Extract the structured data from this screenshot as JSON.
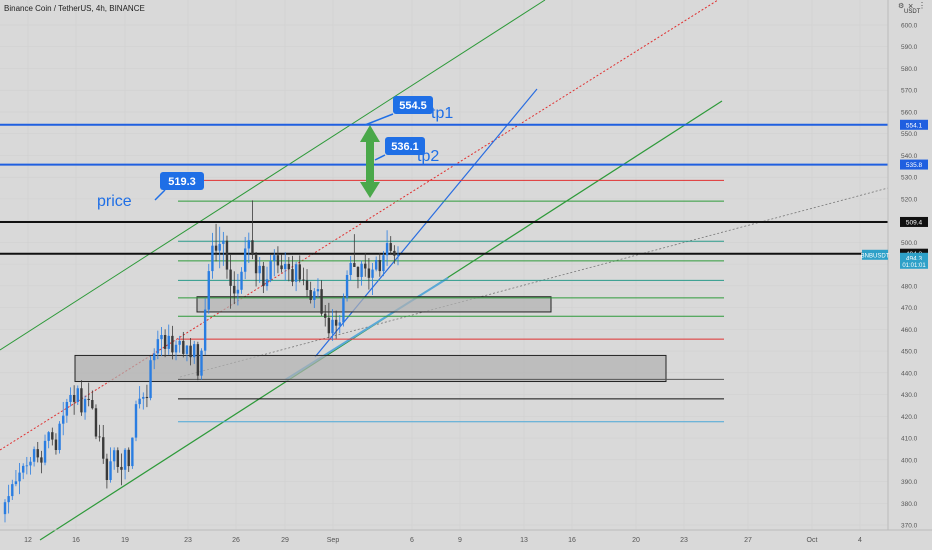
{
  "header": {
    "symbol_title": "Binance Coin / TetherUS, 4h, BINANCE",
    "currency": "USDT"
  },
  "icons": {
    "gear": "gear-icon",
    "close": "close-icon",
    "more": "more-icon"
  },
  "colors": {
    "background": "#d9d9d9",
    "up": "#2a7de1",
    "down": "#3a3a3a",
    "tp_blue": "#1f5fe0",
    "green_line": "#2e9a3a",
    "red_line": "#e03030",
    "callout": "#1f6fe6",
    "arrow": "#4aa84a"
  },
  "chart_data": {
    "type": "candlestick",
    "title": "Binance Coin / TetherUS, 4h, BINANCE",
    "y_axis_ticks": [
      370,
      380,
      390,
      400,
      410,
      420,
      430,
      440,
      450,
      460,
      470,
      480,
      490,
      500,
      510,
      520,
      530,
      540,
      550,
      560,
      570,
      580,
      590,
      600
    ],
    "y_tick_labels": [
      "370.0",
      "380.0",
      "390.0",
      "400.0",
      "410.0",
      "420.0",
      "430.0",
      "440.0",
      "450.0",
      "460.0",
      "470.0",
      "480.0",
      "490.0",
      "500.0",
      "510.0",
      "520.0",
      "530.0",
      "540.0",
      "550.0",
      "560.0",
      "570.0",
      "580.0",
      "590.0",
      "600.0"
    ],
    "x_axis_labels": [
      "12",
      "16",
      "19",
      "23",
      "26",
      "29",
      "Sep",
      "6",
      "9",
      "13",
      "16",
      "20",
      "23",
      "27",
      "Oct",
      "4"
    ],
    "ylim": [
      365,
      605
    ],
    "price_labels": [
      {
        "value": 554.1,
        "text": "554.1"
      },
      {
        "value": 535.8,
        "text": "535.8"
      },
      {
        "value": 509.4,
        "text": "509.4"
      },
      {
        "value": 494.8,
        "text": "494.8"
      },
      {
        "value": 494.3,
        "text": "494.3"
      }
    ],
    "current_price_tag": {
      "symbol": "BNBUSDT",
      "price": "494.3",
      "countdown": "01:01:01"
    },
    "horizontal_lines": [
      {
        "value": 554.1,
        "color": "blue",
        "extent": "full"
      },
      {
        "value": 535.8,
        "color": "blue",
        "extent": "full"
      },
      {
        "value": 509.4,
        "color": "black",
        "extent": "full"
      },
      {
        "value": 494.8,
        "color": "black",
        "extent": "full"
      },
      {
        "value": 528.5,
        "color": "red",
        "extent": "partial"
      },
      {
        "value": 519.0,
        "color": "green",
        "extent": "partial"
      },
      {
        "value": 500.5,
        "color": "teal",
        "extent": "partial"
      },
      {
        "value": 491.5,
        "color": "green",
        "extent": "partial"
      },
      {
        "value": 482.5,
        "color": "teal",
        "extent": "partial"
      },
      {
        "value": 474.5,
        "color": "green",
        "extent": "partial"
      },
      {
        "value": 466.0,
        "color": "green",
        "extent": "partial"
      },
      {
        "value": 455.5,
        "color": "red",
        "extent": "partial"
      },
      {
        "value": 437.0,
        "color": "gray",
        "extent": "partial"
      },
      {
        "value": 428.0,
        "color": "black",
        "extent": "partial"
      },
      {
        "value": 417.5,
        "color": "lightblue",
        "extent": "partial"
      }
    ],
    "zones": [
      {
        "from": 468,
        "to": 475
      },
      {
        "from": 436,
        "to": 448
      }
    ],
    "callouts": [
      {
        "text": "554.5",
        "label": "tp1"
      },
      {
        "text": "536.1",
        "label": "tp2"
      },
      {
        "text": "519.3",
        "label": "price"
      }
    ],
    "candles": [
      [
        375.0,
        381.9,
        371.2,
        380.5
      ],
      [
        380.5,
        388.5,
        375.3,
        383.3
      ],
      [
        383.3,
        390.8,
        381.5,
        388.8
      ],
      [
        388.8,
        395.3,
        387.8,
        390.1
      ],
      [
        390.1,
        398.5,
        384.2,
        394.1
      ],
      [
        394.1,
        398.4,
        391.1,
        397.2
      ],
      [
        397.2,
        401.3,
        393.3,
        397.4
      ],
      [
        397.4,
        401.3,
        393.2,
        399.1
      ],
      [
        399.1,
        406.1,
        396.9,
        404.9
      ],
      [
        404.9,
        408.2,
        398.8,
        401.1
      ],
      [
        401.1,
        404.1,
        393.8,
        398.7
      ],
      [
        398.7,
        411.6,
        397.5,
        408.7
      ],
      [
        408.7,
        413.2,
        405.3,
        412.7
      ],
      [
        412.7,
        414.8,
        406.6,
        409.3
      ],
      [
        409.3,
        412.2,
        402.4,
        404.5
      ],
      [
        404.5,
        417.8,
        402.9,
        416.6
      ],
      [
        416.6,
        426.6,
        411.3,
        420.3
      ],
      [
        420.3,
        428.0,
        417.0,
        426.6
      ],
      [
        426.6,
        433.3,
        424.5,
        429.8
      ],
      [
        429.8,
        434.3,
        420.7,
        426.6
      ],
      [
        426.6,
        434.2,
        425.2,
        432.9
      ],
      [
        432.9,
        436.6,
        420.2,
        421.8
      ],
      [
        421.8,
        429.5,
        418.4,
        428.0
      ],
      [
        428.0,
        435.5,
        424.6,
        427.5
      ],
      [
        427.5,
        431.9,
        423.1,
        423.7
      ],
      [
        423.7,
        425.5,
        409.5,
        410.7
      ],
      [
        410.7,
        416.1,
        408.4,
        410.4
      ],
      [
        410.4,
        416.0,
        398.1,
        400.5
      ],
      [
        400.5,
        402.8,
        386.8,
        390.7
      ],
      [
        390.7,
        405.7,
        389.5,
        399.3
      ],
      [
        399.3,
        405.7,
        395.4,
        404.4
      ],
      [
        404.4,
        405.7,
        394.0,
        396.7
      ],
      [
        396.7,
        402.9,
        388.3,
        395.4
      ],
      [
        395.4,
        405.4,
        391.0,
        404.6
      ],
      [
        404.6,
        405.7,
        394.4,
        397.1
      ],
      [
        397.1,
        410.3,
        395.8,
        410.2
      ],
      [
        410.2,
        427.2,
        408.6,
        425.6
      ],
      [
        425.6,
        433.9,
        423.6,
        428.1
      ],
      [
        428.1,
        431.0,
        423.1,
        428.9
      ],
      [
        428.9,
        434.5,
        424.2,
        428.4
      ],
      [
        428.4,
        447.8,
        427.4,
        445.8
      ],
      [
        445.8,
        451.3,
        441.7,
        448.9
      ],
      [
        448.9,
        459.4,
        446.3,
        455.5
      ],
      [
        455.5,
        461.1,
        447.7,
        457.4
      ],
      [
        457.4,
        460.0,
        447.2,
        451.0
      ],
      [
        451.0,
        462.2,
        448.3,
        457.0
      ],
      [
        457.0,
        461.6,
        446.2,
        449.4
      ],
      [
        449.4,
        454.9,
        445.8,
        452.9
      ],
      [
        452.9,
        457.0,
        449.3,
        454.7
      ],
      [
        454.7,
        458.8,
        447.1,
        448.7
      ],
      [
        448.7,
        452.8,
        445.3,
        452.5
      ],
      [
        452.5,
        456.0,
        443.4,
        447.2
      ],
      [
        447.2,
        454.7,
        444.1,
        453.2
      ],
      [
        453.2,
        454.3,
        436.6,
        438.7
      ],
      [
        438.7,
        451.3,
        436.8,
        450.2
      ],
      [
        450.2,
        474.2,
        448.2,
        469.1
      ],
      [
        469.1,
        490.1,
        467.2,
        486.8
      ],
      [
        486.8,
        504.4,
        483.3,
        498.5
      ],
      [
        498.5,
        508.5,
        491.2,
        496.2
      ],
      [
        496.2,
        507.2,
        488.1,
        499.3
      ],
      [
        499.3,
        504.8,
        489.2,
        500.8
      ],
      [
        500.8,
        503.1,
        483.3,
        487.5
      ],
      [
        487.5,
        494.7,
        469.5,
        480.0
      ],
      [
        480.0,
        486.7,
        471.6,
        476.5
      ],
      [
        476.5,
        485.5,
        471.0,
        478.2
      ],
      [
        478.2,
        488.6,
        476.3,
        486.5
      ],
      [
        486.5,
        502.5,
        483.1,
        497.2
      ],
      [
        497.2,
        504.5,
        490.5,
        501.0
      ],
      [
        501.0,
        519.3,
        492.3,
        494.2
      ],
      [
        494.2,
        495.6,
        479.7,
        485.8
      ],
      [
        485.8,
        493.3,
        481.4,
        489.2
      ],
      [
        489.2,
        491.0,
        476.7,
        479.9
      ],
      [
        479.9,
        488.8,
        477.8,
        483.0
      ],
      [
        483.0,
        494.2,
        481.7,
        491.4
      ],
      [
        491.4,
        496.9,
        484.4,
        494.1
      ],
      [
        494.1,
        498.2,
        485.8,
        489.4
      ],
      [
        489.4,
        494.5,
        486.1,
        487.7
      ],
      [
        487.7,
        495.5,
        482.4,
        490.1
      ],
      [
        490.1,
        493.3,
        482.1,
        487.7
      ],
      [
        487.7,
        493.8,
        479.9,
        481.9
      ],
      [
        481.9,
        491.1,
        477.6,
        489.9
      ],
      [
        489.9,
        494.0,
        481.6,
        482.9
      ],
      [
        482.9,
        488.4,
        480.3,
        482.5
      ],
      [
        482.5,
        487.7,
        474.8,
        478.1
      ],
      [
        478.1,
        481.9,
        471.9,
        473.5
      ],
      [
        473.5,
        479.0,
        469.8,
        477.5
      ],
      [
        477.5,
        483.5,
        474.5,
        478.5
      ],
      [
        478.5,
        482.6,
        466.2,
        467.2
      ],
      [
        467.2,
        471.2,
        461.3,
        465.3
      ],
      [
        465.3,
        472.2,
        455.9,
        458.2
      ],
      [
        458.2,
        469.3,
        454.7,
        464.4
      ],
      [
        464.4,
        468.6,
        455.7,
        461.7
      ],
      [
        461.7,
        466.6,
        458.2,
        463.2
      ],
      [
        463.2,
        476.5,
        461.3,
        474.5
      ],
      [
        474.5,
        487.1,
        472.8,
        485.0
      ],
      [
        485.0,
        493.7,
        482.4,
        490.5
      ],
      [
        490.5,
        503.8,
        488.7,
        488.7
      ],
      [
        488.7,
        489.1,
        478.9,
        484.1
      ],
      [
        484.1,
        491.6,
        480.1,
        490.2
      ],
      [
        490.2,
        495.2,
        484.2,
        488.0
      ],
      [
        488.0,
        492.8,
        478.3,
        483.7
      ],
      [
        483.7,
        490.5,
        475.8,
        487.5
      ],
      [
        487.5,
        493.5,
        486.7,
        491.9
      ],
      [
        491.9,
        495.1,
        484.2,
        486.8
      ],
      [
        486.8,
        496.0,
        484.5,
        494.1
      ],
      [
        494.1,
        505.6,
        489.2,
        499.7
      ],
      [
        499.7,
        502.9,
        494.6,
        496.1
      ],
      [
        496.1,
        498.7,
        490.2,
        493.9
      ],
      [
        493.9,
        498.2,
        489.5,
        494.3
      ]
    ]
  }
}
